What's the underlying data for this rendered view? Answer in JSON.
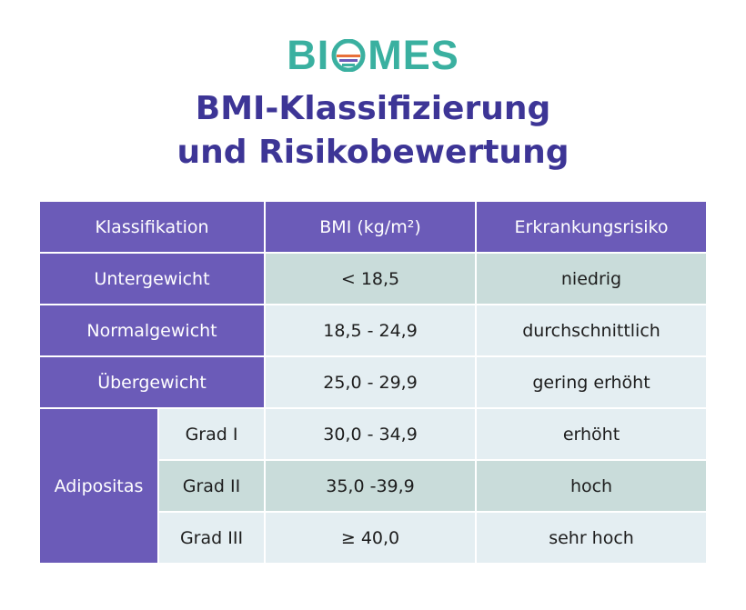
{
  "brand": {
    "part1": "BI",
    "part2": "MES"
  },
  "title": {
    "line1": "BMI-Klassifizierung",
    "line2": "und Risikobewertung"
  },
  "table": {
    "headers": [
      "Klassifikation",
      "BMI (kg/m²)",
      "Erkrankungsrisiko"
    ],
    "rows": [
      {
        "class": "Untergewicht",
        "bmi": "< 18,5",
        "risk": "niedrig"
      },
      {
        "class": "Normalgewicht",
        "bmi": "18,5 - 24,9",
        "risk": "durchschnittlich"
      },
      {
        "class": "Übergewicht",
        "bmi": "25,0 - 29,9",
        "risk": "gering erhöht"
      }
    ],
    "adipositas": {
      "label": "Adipositas",
      "grades": [
        {
          "grade": "Grad I",
          "bmi": "30,0 - 34,9",
          "risk": "erhöht"
        },
        {
          "grade": "Grad II",
          "bmi": "35,0 -39,9",
          "risk": "hoch"
        },
        {
          "grade": "Grad III",
          "bmi": "≥ 40,0",
          "risk": "sehr hoch"
        }
      ]
    }
  },
  "colors": {
    "header": "#6b5bb8",
    "title": "#3d3596",
    "logo": "#3ab0a0",
    "row_dark": "#c9dcda",
    "row_light": "#e4eef2"
  }
}
